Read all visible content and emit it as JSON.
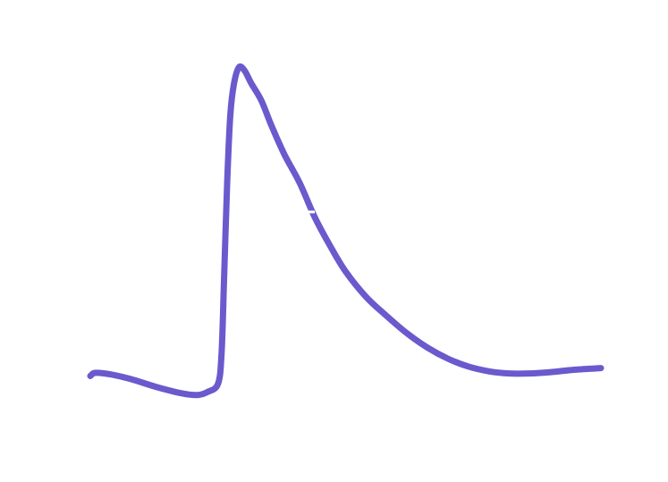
{
  "chart_data": {
    "type": "line",
    "title": "",
    "xlabel": "",
    "ylabel": "",
    "grid": false,
    "legend": "none",
    "xlim": [
      0,
      100
    ],
    "ylim": [
      0,
      100
    ],
    "series": [
      {
        "color": "#6A5ACD",
        "points": [
          [
            0.0,
            1.0
          ],
          [
            1.0,
            2.0
          ],
          [
            4.0,
            1.5
          ],
          [
            8.0,
            0.0
          ],
          [
            13.0,
            -2.5
          ],
          [
            18.0,
            -4.5
          ],
          [
            21.0,
            -5.0
          ],
          [
            23.0,
            -4.0
          ],
          [
            25.0,
            -1.5
          ],
          [
            25.7,
            8.0
          ],
          [
            26.2,
            32.0
          ],
          [
            26.8,
            62.0
          ],
          [
            27.4,
            83.0
          ],
          [
            28.1,
            93.0
          ],
          [
            29.1,
            98.5
          ],
          [
            30.2,
            97.5
          ],
          [
            31.5,
            93.5
          ],
          [
            33.5,
            88.0
          ],
          [
            35.5,
            80.0
          ],
          [
            38.0,
            71.0
          ],
          [
            41.0,
            62.0
          ],
          [
            44.0,
            51.0
          ],
          [
            47.0,
            42.0
          ],
          [
            50.0,
            34.0
          ],
          [
            54.0,
            26.0
          ],
          [
            58.0,
            20.0
          ],
          [
            62.0,
            14.5
          ],
          [
            66.0,
            10.0
          ],
          [
            70.0,
            6.5
          ],
          [
            74.0,
            4.0
          ],
          [
            78.0,
            2.5
          ],
          [
            82.0,
            1.8
          ],
          [
            86.0,
            1.8
          ],
          [
            90.0,
            2.2
          ],
          [
            95.0,
            3.0
          ],
          [
            100.0,
            3.5
          ]
        ]
      }
    ]
  }
}
